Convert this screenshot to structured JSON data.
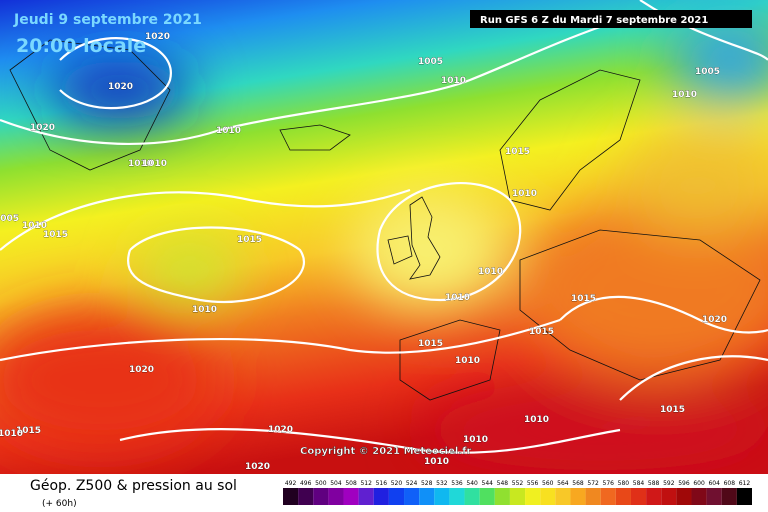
{
  "header": {
    "date": "Jeudi 9 septembre 2021",
    "time": "20:00 locale",
    "run": "Run GFS 6 Z du Mardi 7 septembre 2021"
  },
  "isobar_labels": [
    "1020",
    "1020",
    "1020",
    "1005",
    "1010",
    "1010",
    "1010",
    "1010",
    "1005",
    "1010",
    "1015",
    "1010",
    "1005",
    "1010",
    "1015",
    "1015",
    "1010",
    "1010",
    "1010",
    "1015",
    "1015",
    "1020",
    "1015",
    "1010",
    "1020",
    "1015",
    "1010",
    "1010",
    "1015",
    "1010",
    "1020",
    "1020",
    "1010"
  ],
  "copyright": "Copyright © 2021 Meteociel.fr",
  "legend": {
    "title": "Géop. Z500 & pression au sol",
    "subtitle": "(+ 60h)",
    "scale": [
      492,
      496,
      500,
      504,
      508,
      512,
      516,
      520,
      524,
      528,
      532,
      536,
      540,
      544,
      548,
      552,
      556,
      560,
      564,
      568,
      572,
      576,
      580,
      584,
      588,
      592,
      596,
      600,
      604,
      608,
      612
    ]
  }
}
